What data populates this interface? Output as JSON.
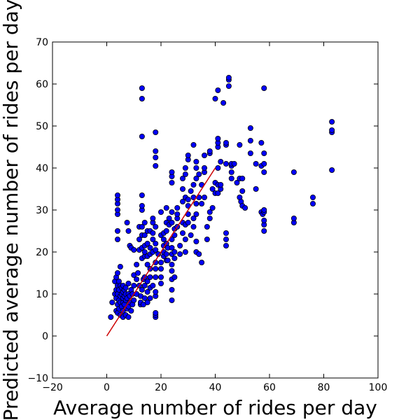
{
  "chart_data": {
    "type": "scatter",
    "xlabel": "Average number of rides per day",
    "ylabel": "Predicted average number of rides per day",
    "xlim": [
      -20,
      100
    ],
    "ylim": [
      -10,
      70
    ],
    "xticks": [
      -20,
      0,
      20,
      40,
      60,
      80,
      100
    ],
    "yticks": [
      -10,
      0,
      10,
      20,
      30,
      40,
      50,
      60,
      70
    ],
    "grid": false,
    "legend": "none",
    "colors": {
      "point_fill": "#0000ff",
      "point_edge": "#000000",
      "reference_line": "#cc0000"
    },
    "reference_line": {
      "x": [
        0,
        40
      ],
      "y": [
        0,
        40
      ]
    },
    "points": [
      [
        1.5,
        4.5
      ],
      [
        2,
        8
      ],
      [
        3,
        10
      ],
      [
        3,
        13
      ],
      [
        3.5,
        6
      ],
      [
        3.5,
        9
      ],
      [
        3.5,
        11
      ],
      [
        3.5,
        14
      ],
      [
        4,
        5.5
      ],
      [
        4,
        7.5
      ],
      [
        4,
        10
      ],
      [
        4,
        12
      ],
      [
        4,
        15
      ],
      [
        4.5,
        6.5
      ],
      [
        4.5,
        8.5
      ],
      [
        4.5,
        11
      ],
      [
        4.5,
        13
      ],
      [
        5,
        5
      ],
      [
        5,
        8
      ],
      [
        5,
        9.5
      ],
      [
        5,
        12
      ],
      [
        5,
        16.5
      ],
      [
        5.5,
        7
      ],
      [
        5.5,
        10
      ],
      [
        5.5,
        11.5
      ],
      [
        6,
        4.5
      ],
      [
        6,
        6
      ],
      [
        6,
        8
      ],
      [
        6,
        9
      ],
      [
        6,
        10.5
      ],
      [
        6,
        12
      ],
      [
        6.5,
        7.5
      ],
      [
        6.5,
        9.5
      ],
      [
        6.5,
        11
      ],
      [
        7,
        5
      ],
      [
        7,
        8.5
      ],
      [
        7,
        10
      ],
      [
        7,
        11.5
      ],
      [
        7.5,
        6.5
      ],
      [
        7.5,
        9
      ],
      [
        8,
        4.5
      ],
      [
        8,
        7
      ],
      [
        8,
        10
      ],
      [
        8,
        12.5
      ],
      [
        8.5,
        8
      ],
      [
        8.5,
        9.5
      ],
      [
        9,
        6
      ],
      [
        9,
        11
      ],
      [
        9.5,
        7.5
      ],
      [
        9.5,
        10
      ],
      [
        10,
        8.5
      ],
      [
        10,
        12
      ],
      [
        10,
        14.5
      ],
      [
        11,
        10
      ],
      [
        11,
        13.5
      ],
      [
        4,
        23
      ],
      [
        4,
        25
      ],
      [
        4,
        29
      ],
      [
        4,
        30
      ],
      [
        4,
        31.5
      ],
      [
        4,
        32.5
      ],
      [
        4,
        33.5
      ],
      [
        7.5,
        27
      ],
      [
        8,
        25
      ],
      [
        8.5,
        21.5
      ],
      [
        9,
        21
      ],
      [
        10,
        20.5
      ],
      [
        11,
        17
      ],
      [
        11.5,
        15
      ],
      [
        12,
        12
      ],
      [
        12,
        20.5
      ],
      [
        12,
        23
      ],
      [
        12,
        26
      ],
      [
        12.5,
        7.5
      ],
      [
        12.5,
        8
      ],
      [
        12.5,
        9.5
      ],
      [
        13,
        11
      ],
      [
        13,
        18.5
      ],
      [
        13,
        21
      ],
      [
        13,
        24
      ],
      [
        13,
        26
      ],
      [
        13,
        30
      ],
      [
        13,
        31
      ],
      [
        13,
        33.5
      ],
      [
        13,
        47.5
      ],
      [
        13,
        56.5
      ],
      [
        13,
        59
      ],
      [
        13.5,
        13.5
      ],
      [
        13.5,
        7.5
      ],
      [
        14,
        9
      ],
      [
        14,
        12
      ],
      [
        14,
        14
      ],
      [
        14,
        19
      ],
      [
        14,
        20
      ],
      [
        14,
        21.5
      ],
      [
        14,
        24
      ],
      [
        14,
        27
      ],
      [
        15,
        8
      ],
      [
        15,
        10.5
      ],
      [
        15,
        13
      ],
      [
        15,
        17
      ],
      [
        15,
        19
      ],
      [
        15,
        22
      ],
      [
        15,
        25
      ],
      [
        16,
        9
      ],
      [
        16,
        11.5
      ],
      [
        16,
        14
      ],
      [
        16,
        16
      ],
      [
        16,
        19.5
      ],
      [
        16,
        21
      ],
      [
        16,
        25
      ],
      [
        17,
        12
      ],
      [
        17,
        20
      ],
      [
        17,
        23
      ],
      [
        17,
        24.5
      ],
      [
        17,
        27
      ],
      [
        17,
        28
      ],
      [
        18,
        4.5
      ],
      [
        18,
        5
      ],
      [
        18,
        5.5
      ],
      [
        18,
        9.5
      ],
      [
        18,
        10.5
      ],
      [
        18,
        14
      ],
      [
        18,
        16
      ],
      [
        18,
        17.5
      ],
      [
        18,
        20.5
      ],
      [
        18,
        22
      ],
      [
        18,
        26
      ],
      [
        18,
        40.5
      ],
      [
        18,
        42.5
      ],
      [
        18,
        44
      ],
      [
        18,
        48.5
      ],
      [
        19,
        19.5
      ],
      [
        20,
        12.5
      ],
      [
        20,
        14
      ],
      [
        20,
        16
      ],
      [
        20,
        17.5
      ],
      [
        20,
        24
      ],
      [
        20,
        29.5
      ],
      [
        21,
        19
      ],
      [
        21,
        20
      ],
      [
        21,
        21.5
      ],
      [
        21,
        23
      ],
      [
        21,
        24.5
      ],
      [
        22,
        18
      ],
      [
        22,
        19.5
      ],
      [
        22,
        22
      ],
      [
        22,
        25
      ],
      [
        22,
        27
      ],
      [
        22,
        30.5
      ],
      [
        22.5,
        18
      ],
      [
        22.5,
        21
      ],
      [
        23,
        26.5
      ],
      [
        23,
        28
      ],
      [
        24,
        8.5
      ],
      [
        24,
        11
      ],
      [
        24,
        13.5
      ],
      [
        24,
        15.5
      ],
      [
        24,
        17
      ],
      [
        24,
        19.5
      ],
      [
        24,
        21
      ],
      [
        24,
        23
      ],
      [
        24,
        27
      ],
      [
        24,
        29.5
      ],
      [
        24,
        36.5
      ],
      [
        24,
        38
      ],
      [
        24,
        39
      ],
      [
        25,
        14
      ],
      [
        25,
        18.5
      ],
      [
        25,
        20
      ],
      [
        25,
        24
      ],
      [
        25,
        25.5
      ],
      [
        26,
        26
      ],
      [
        26,
        28
      ],
      [
        26,
        29
      ],
      [
        26,
        30.5
      ],
      [
        27,
        19.5
      ],
      [
        27,
        21.5
      ],
      [
        28,
        24.5
      ],
      [
        28,
        27
      ],
      [
        28,
        32
      ],
      [
        28,
        35
      ],
      [
        28,
        37.5
      ],
      [
        29,
        20
      ],
      [
        29,
        23
      ],
      [
        29,
        26.5
      ],
      [
        29,
        33
      ],
      [
        29,
        38.5
      ],
      [
        29,
        40
      ],
      [
        30,
        27
      ],
      [
        30,
        29
      ],
      [
        30,
        31
      ],
      [
        30,
        32.5
      ],
      [
        30,
        42
      ],
      [
        30,
        43
      ],
      [
        31,
        24
      ],
      [
        31,
        34.5
      ],
      [
        32,
        26
      ],
      [
        32,
        28
      ],
      [
        32,
        33
      ],
      [
        32,
        36
      ],
      [
        32,
        45.5
      ],
      [
        33,
        20
      ],
      [
        33,
        22.5
      ],
      [
        33,
        29
      ],
      [
        33,
        31.5
      ],
      [
        33,
        37.5
      ],
      [
        33,
        40
      ],
      [
        33,
        41.5
      ],
      [
        34,
        19.5
      ],
      [
        34,
        33
      ],
      [
        34,
        38.5
      ],
      [
        35,
        17.5
      ],
      [
        35,
        31.5
      ],
      [
        35,
        36
      ],
      [
        36,
        33
      ],
      [
        36,
        39
      ],
      [
        36,
        40
      ],
      [
        36,
        43
      ],
      [
        37,
        23
      ],
      [
        37,
        26
      ],
      [
        38,
        28
      ],
      [
        38,
        29.5
      ],
      [
        38,
        43.5
      ],
      [
        38,
        44
      ],
      [
        39,
        30.5
      ],
      [
        39,
        35
      ],
      [
        40,
        34
      ],
      [
        40,
        36.5
      ],
      [
        40,
        56.5
      ],
      [
        41,
        34
      ],
      [
        41,
        36
      ],
      [
        41,
        40
      ],
      [
        41,
        45
      ],
      [
        41,
        46
      ],
      [
        41,
        47
      ],
      [
        41,
        58.5
      ],
      [
        42,
        35
      ],
      [
        42,
        36
      ],
      [
        42,
        41.5
      ],
      [
        43,
        55.5
      ],
      [
        44,
        21.5
      ],
      [
        44,
        23
      ],
      [
        44,
        24.5
      ],
      [
        44,
        41
      ],
      [
        44,
        45.5
      ],
      [
        44,
        46
      ],
      [
        45,
        59.5
      ],
      [
        45,
        61
      ],
      [
        45,
        61.5
      ],
      [
        46,
        37.5
      ],
      [
        46,
        39
      ],
      [
        46,
        40.5
      ],
      [
        46,
        41
      ],
      [
        47,
        41
      ],
      [
        48,
        36.5
      ],
      [
        49,
        33
      ],
      [
        49,
        37.5
      ],
      [
        49,
        45.5
      ],
      [
        49.5,
        32
      ],
      [
        50,
        31
      ],
      [
        50,
        34.5
      ],
      [
        50,
        37.5
      ],
      [
        51,
        30.5
      ],
      [
        53,
        43.5
      ],
      [
        53,
        46.5
      ],
      [
        53,
        49.5
      ],
      [
        55,
        35
      ],
      [
        55,
        41
      ],
      [
        57,
        40.5
      ],
      [
        57,
        46
      ],
      [
        57,
        29.5
      ],
      [
        57.5,
        29
      ],
      [
        58,
        25
      ],
      [
        58,
        26.5
      ],
      [
        58,
        27.5
      ],
      [
        58,
        29.5
      ],
      [
        58,
        30
      ],
      [
        58,
        39
      ],
      [
        58,
        41
      ],
      [
        58,
        43.5
      ],
      [
        58,
        59
      ],
      [
        69,
        27
      ],
      [
        69,
        28
      ],
      [
        69,
        39
      ],
      [
        76,
        31.5
      ],
      [
        76,
        33
      ],
      [
        83,
        39.5
      ],
      [
        83,
        48.5
      ],
      [
        83,
        49
      ],
      [
        83,
        51
      ]
    ]
  }
}
